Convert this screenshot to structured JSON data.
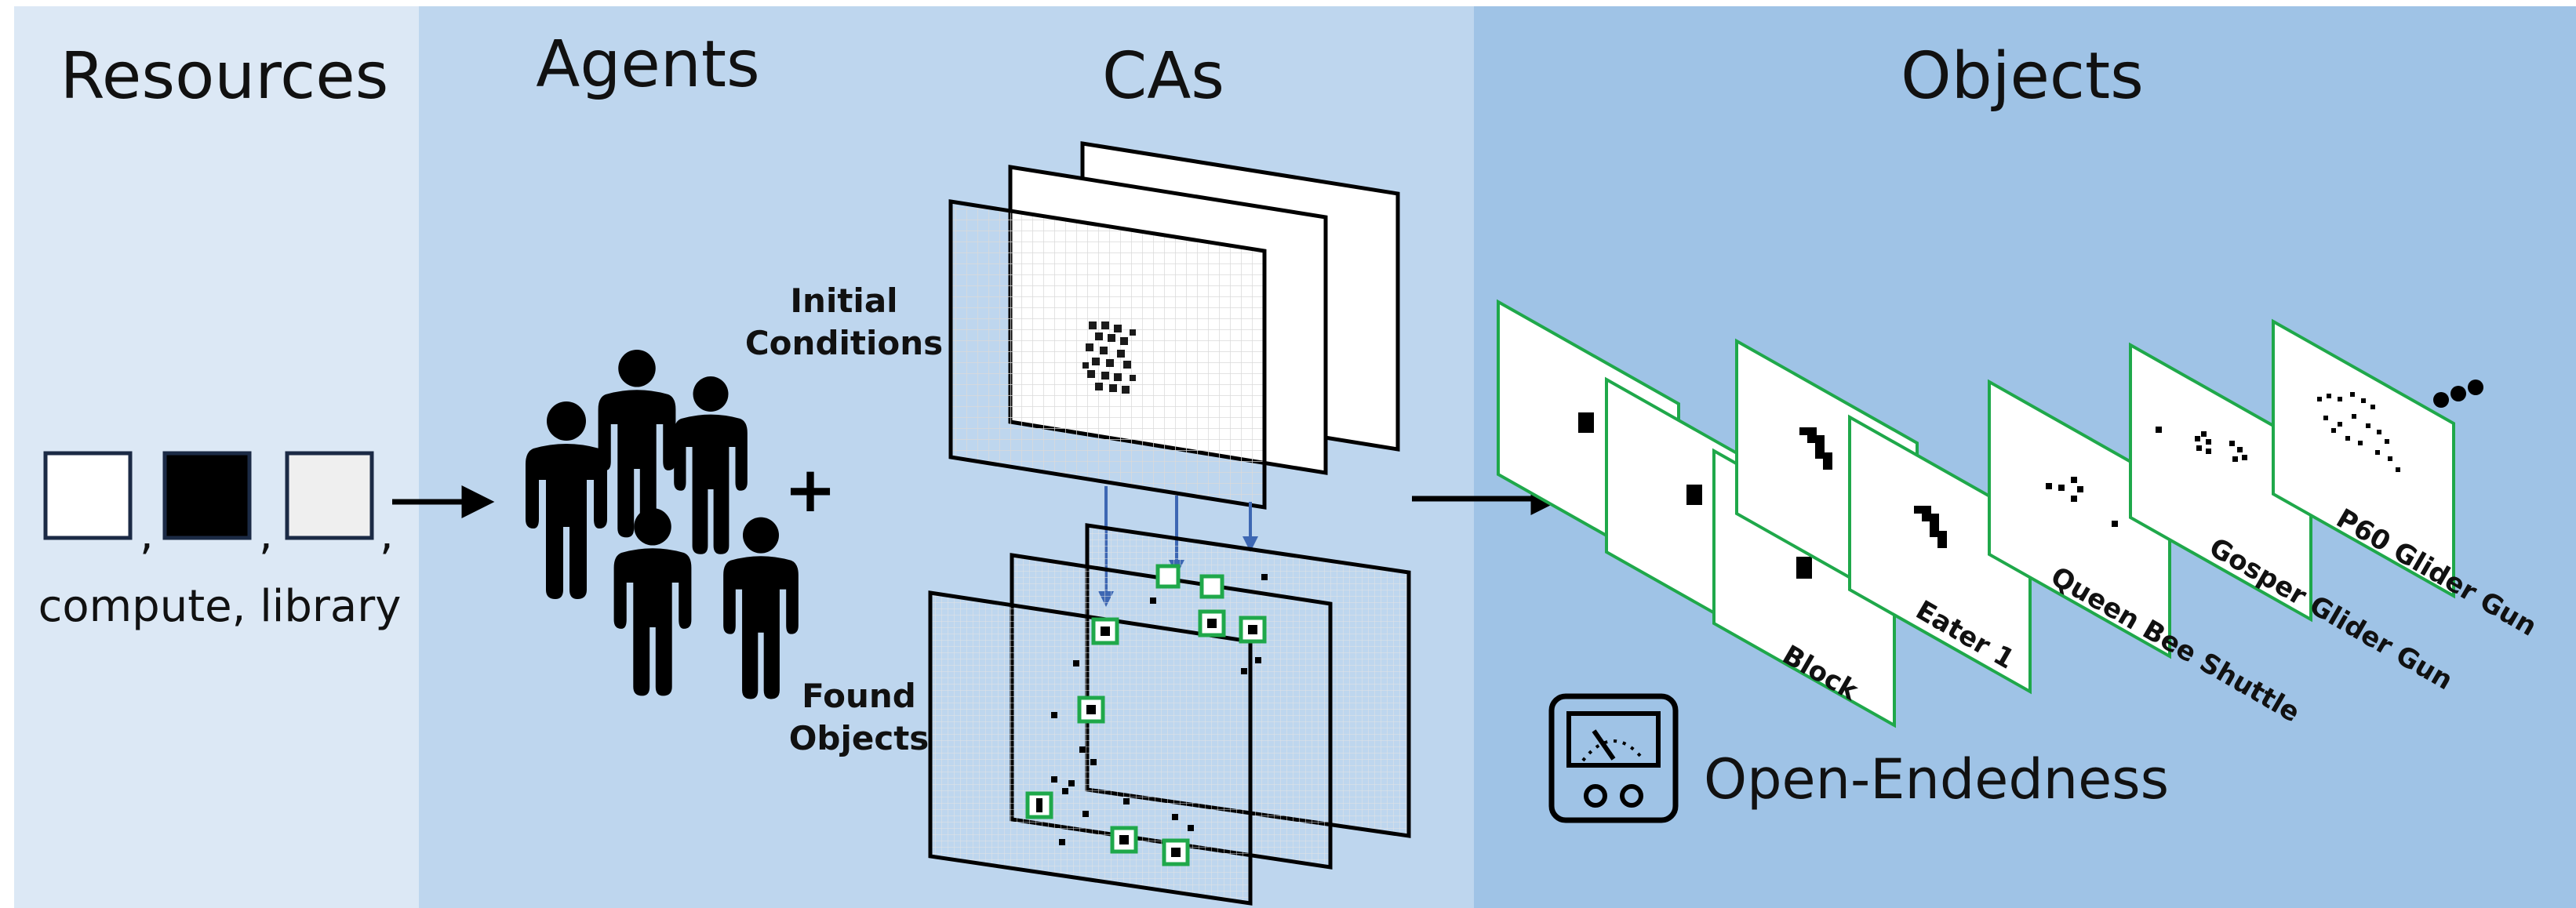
{
  "sections": {
    "resources": {
      "title": "Resources",
      "caption": "compute, library",
      "separators": [
        ",",
        ",",
        ","
      ]
    },
    "agents": {
      "title": "Agents",
      "plus": "+"
    },
    "cas": {
      "title": "CAs",
      "initial_conditions": [
        "Initial",
        "Conditions"
      ],
      "found_objects": [
        "Found",
        "Objects"
      ]
    },
    "objects": {
      "title": "Objects",
      "labels": [
        "Block",
        "Eater 1",
        "Queen Bee Shuttle",
        "Gosper Glider Gun",
        "P60 Glider Gun"
      ],
      "open_endedness": "Open-Endedness"
    }
  },
  "icons": [
    "white-square-icon",
    "black-square-icon",
    "light-gray-square-icon",
    "person-icon",
    "plus-icon",
    "meter-icon",
    "ellipsis-icon"
  ],
  "colors": {
    "resources_bg": "#dce8f5",
    "agents_cas_bg": "#bed6ee",
    "objects_bg": "#9fc3e6",
    "highlight": "#1fa84a",
    "arrow_blue": "#3d67b3"
  }
}
